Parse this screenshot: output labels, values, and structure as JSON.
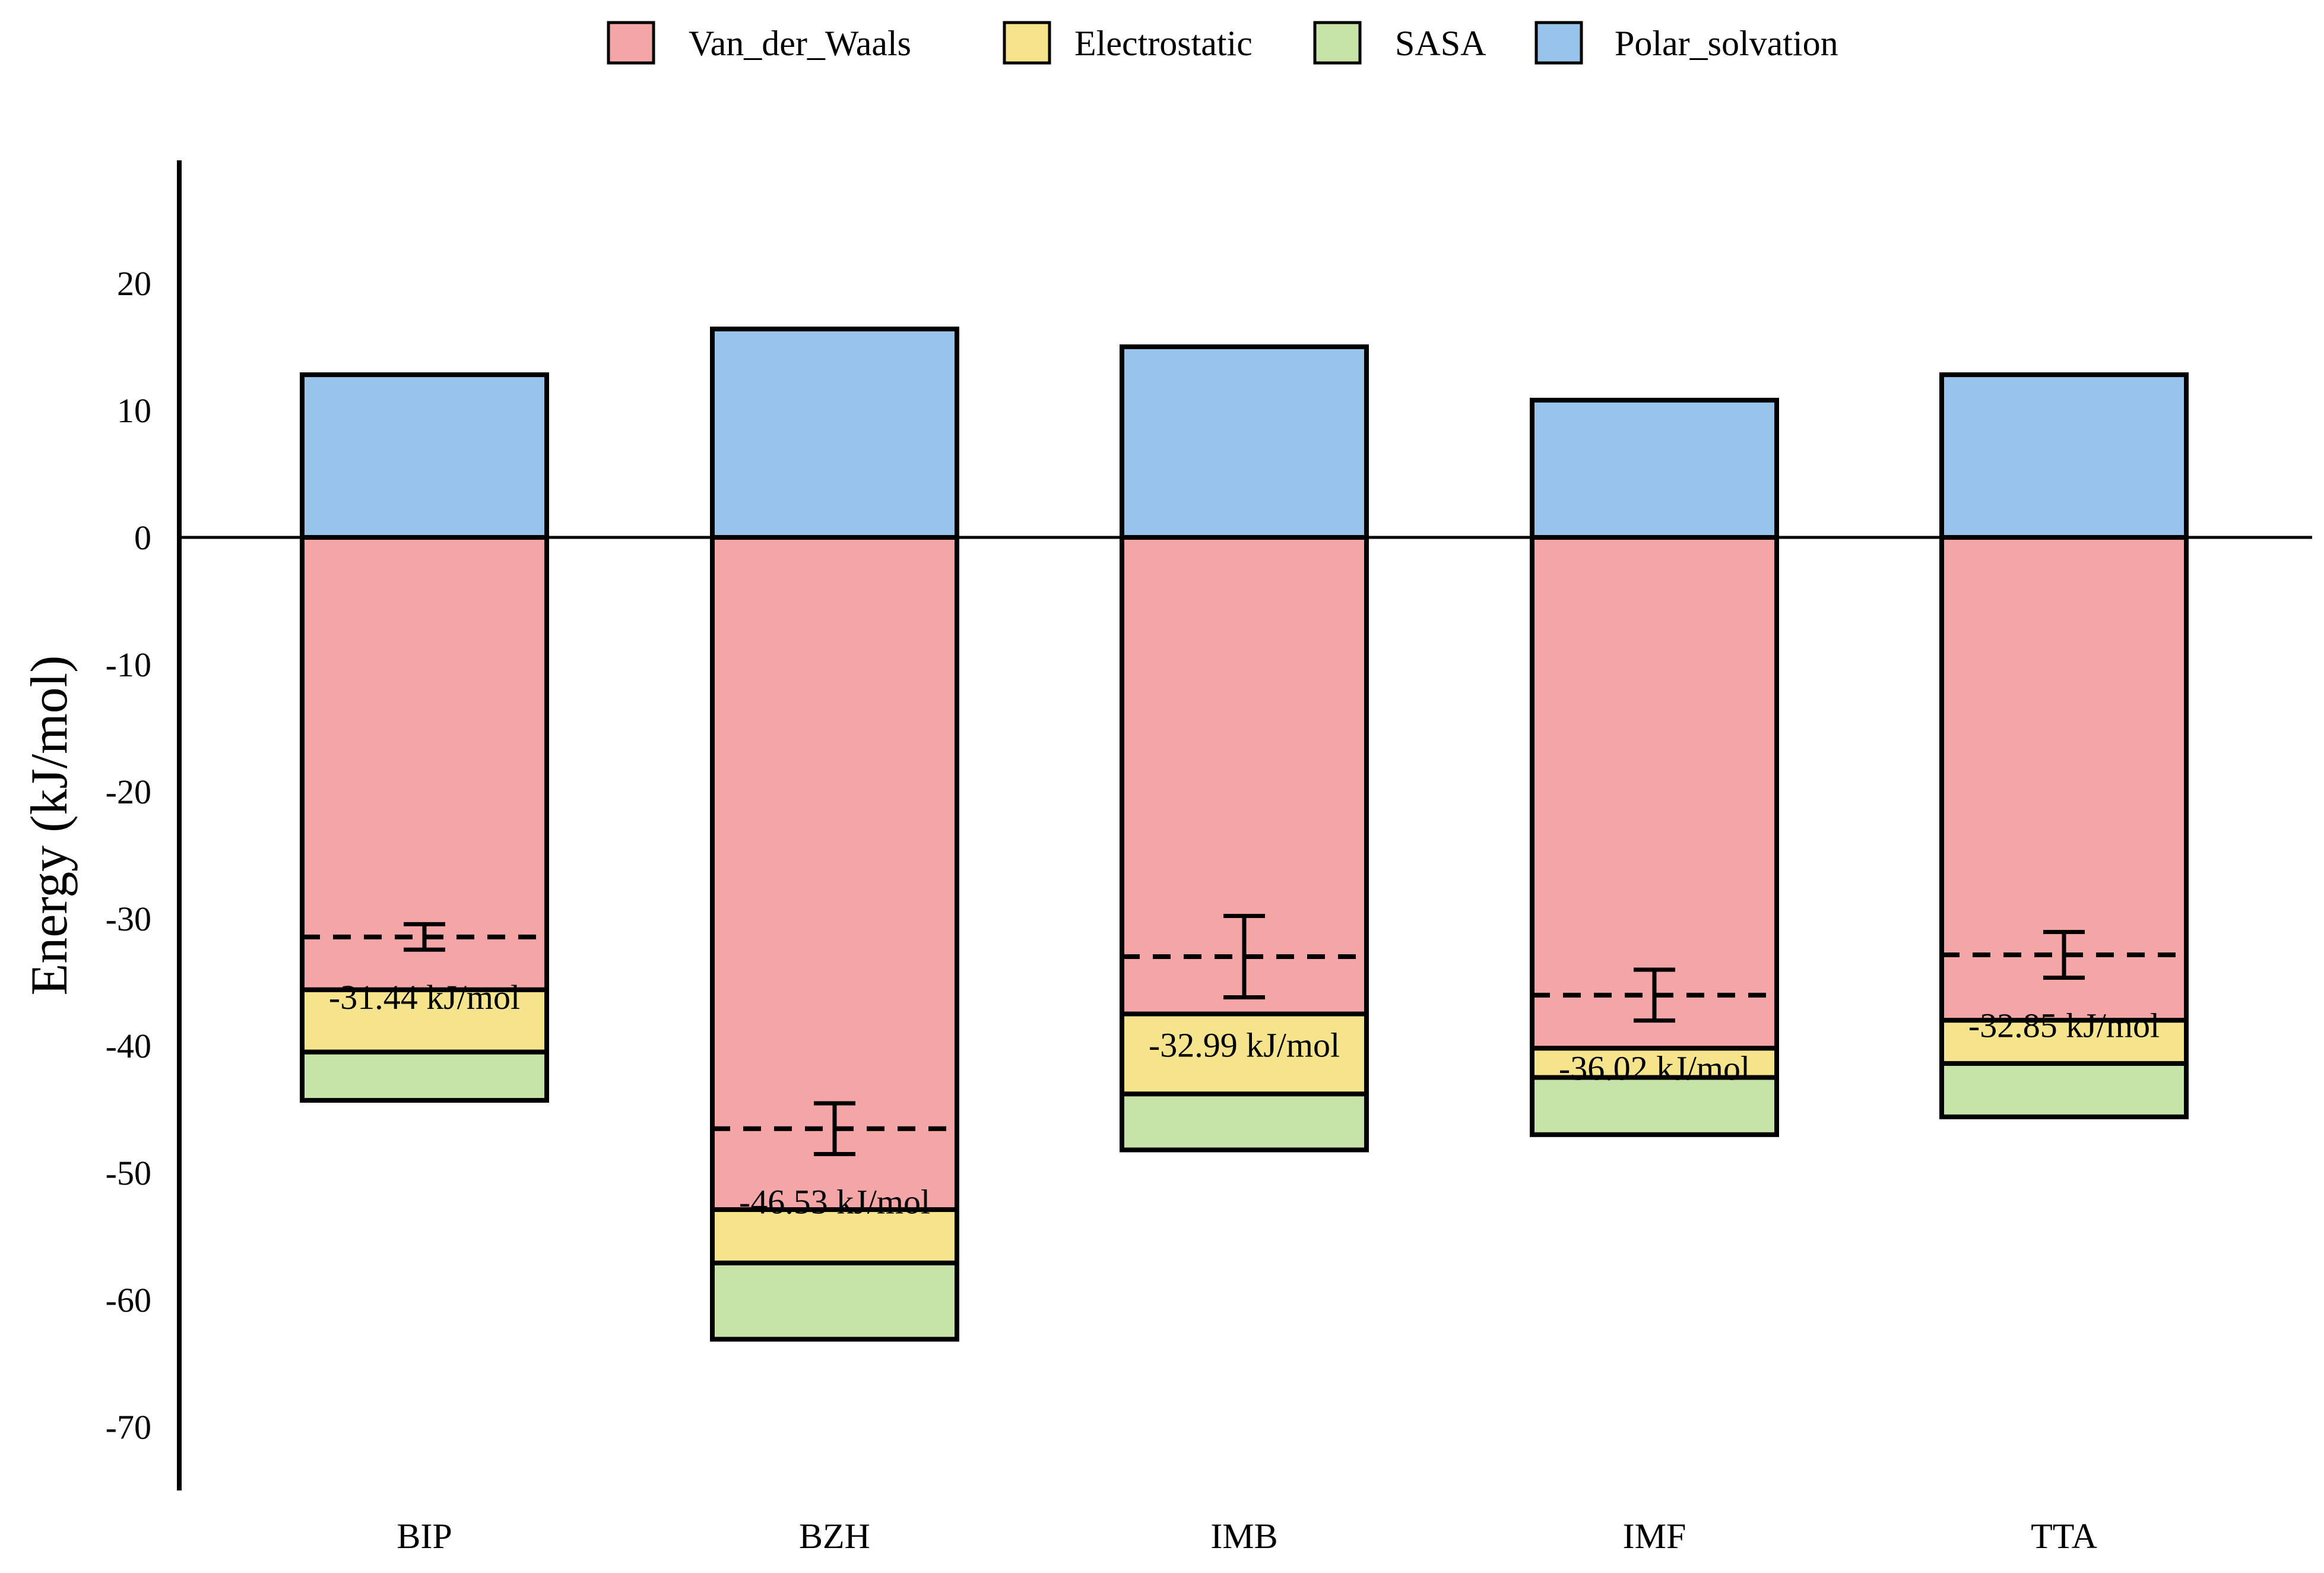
{
  "chart_data": {
    "type": "bar",
    "stacked": true,
    "title": "",
    "xlabel": "",
    "ylabel": "Energy (kJ/mol)",
    "ylim": [
      -75,
      30
    ],
    "yticks": [
      20,
      10,
      0,
      -10,
      -20,
      -30,
      -40,
      -50,
      -60,
      -70
    ],
    "grid": false,
    "legend_position": "top-center",
    "categories": [
      "BIP",
      "BZH",
      "IMB",
      "IMF",
      "TTA"
    ],
    "series": [
      {
        "name": "Van_der_Waals",
        "color": "#f4a6a6",
        "values": [
          -35.6,
          -52.9,
          -37.5,
          -40.2,
          -38.0
        ]
      },
      {
        "name": "Electrostatic",
        "color": "#f5e48c",
        "values": [
          -4.9,
          -4.2,
          -6.3,
          -2.3,
          -3.4
        ]
      },
      {
        "name": "SASA",
        "color": "#c8e3a8",
        "values": [
          -3.8,
          -6.0,
          -4.4,
          -4.5,
          -4.2
        ]
      },
      {
        "name": "Polar_solvation",
        "color": "#98c4ec",
        "values": [
          12.8,
          16.4,
          15.0,
          10.8,
          12.8
        ]
      }
    ],
    "totals": [
      {
        "category": "BIP",
        "value": -31.44,
        "error": 1.0,
        "label": "-31.44 kJ/mol"
      },
      {
        "category": "BZH",
        "value": -46.53,
        "error": 2.0,
        "label": "-46.53 kJ/mol"
      },
      {
        "category": "IMB",
        "value": -32.99,
        "error": 3.2,
        "label": "-32.99 kJ/mol"
      },
      {
        "category": "IMF",
        "value": -36.02,
        "error": 2.0,
        "label": "-36.02 kJ/mol"
      },
      {
        "category": "TTA",
        "value": -32.85,
        "error": 1.8,
        "label": "-32.85 kJ/mol"
      }
    ]
  }
}
